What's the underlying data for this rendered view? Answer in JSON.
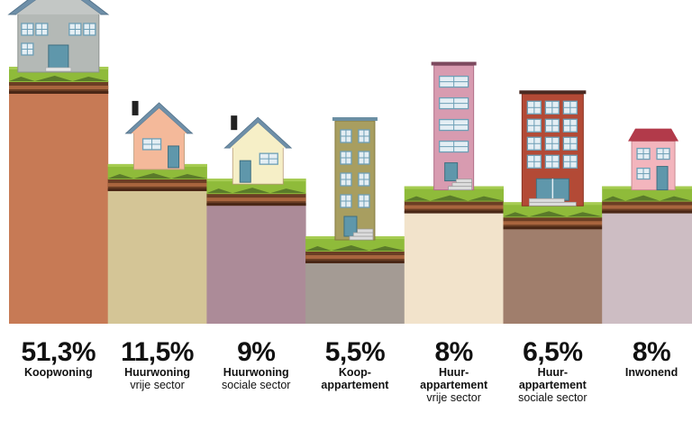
{
  "chart_data": {
    "type": "bar",
    "title": "",
    "xlabel": "",
    "ylabel": "",
    "ylim": [
      0,
      51.3
    ],
    "grid": false,
    "categories": [
      {
        "name": "Koopwoning",
        "sub": ""
      },
      {
        "name": "Huurwoning",
        "sub": "vrije sector"
      },
      {
        "name": "Huurwoning",
        "sub": "sociale sector"
      },
      {
        "name": "Koop-appartement",
        "sub": ""
      },
      {
        "name": "Huur-appartement",
        "sub": "vrije sector"
      },
      {
        "name": "Huur-appartement",
        "sub": "sociale sector"
      },
      {
        "name": "Inwonend",
        "sub": ""
      }
    ],
    "values": [
      51.3,
      11.5,
      9,
      5.5,
      8,
      6.5,
      8
    ],
    "value_labels": [
      "51,3%",
      "11,5%",
      "9%",
      "5,5%",
      "8%",
      "6,5%",
      "8%"
    ],
    "building_icons": [
      "large-house-icon",
      "house-chimney-icon",
      "house-chimney-icon",
      "apartment-tower-icon",
      "apartment-tower-icon",
      "apartment-block-icon",
      "small-house-icon"
    ]
  },
  "colors": {
    "bars": [
      "#c77a55",
      "#d4c596",
      "#ac8b98",
      "#a49b94",
      "#f2e3cb",
      "#a07e6c",
      "#cdbdc3"
    ],
    "grass": "#8fbb3a",
    "grass_dark": "#5a7a2a",
    "soil": "#6b3e24"
  }
}
